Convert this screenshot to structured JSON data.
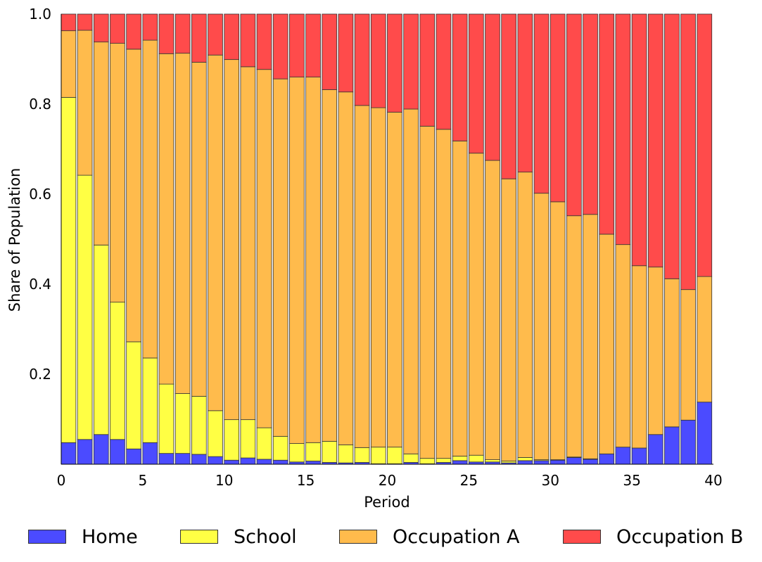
{
  "chart_data": {
    "type": "bar",
    "stacked": true,
    "xlabel": "Period",
    "ylabel": "Share of Population",
    "xlim": [
      0,
      40
    ],
    "ylim": [
      0,
      1.0
    ],
    "xticks": [
      "0",
      "5",
      "10",
      "15",
      "20",
      "25",
      "30",
      "35",
      "40"
    ],
    "yticks": [
      "0.2",
      "0.4",
      "0.6",
      "0.8",
      "1.0"
    ],
    "legend_position": "bottom",
    "x": [
      0,
      1,
      2,
      3,
      4,
      5,
      6,
      7,
      8,
      9,
      10,
      11,
      12,
      13,
      14,
      15,
      16,
      17,
      18,
      19,
      20,
      21,
      22,
      23,
      24,
      25,
      26,
      27,
      28,
      29,
      30,
      31,
      32,
      33,
      34,
      35,
      36,
      37,
      38,
      39
    ],
    "series": [
      {
        "name": "Home",
        "color": "#4b4bff",
        "values": [
          0.048,
          0.055,
          0.066,
          0.055,
          0.034,
          0.048,
          0.024,
          0.024,
          0.022,
          0.017,
          0.009,
          0.014,
          0.011,
          0.009,
          0.005,
          0.007,
          0.004,
          0.003,
          0.004,
          0.001,
          0.001,
          0.004,
          0.001,
          0.004,
          0.008,
          0.005,
          0.005,
          0.003,
          0.008,
          0.008,
          0.009,
          0.015,
          0.011,
          0.023,
          0.038,
          0.036,
          0.066,
          0.083,
          0.098,
          0.138
        ]
      },
      {
        "name": "School",
        "color": "#ffff44",
        "values": [
          0.767,
          0.587,
          0.421,
          0.305,
          0.238,
          0.188,
          0.154,
          0.133,
          0.129,
          0.102,
          0.09,
          0.085,
          0.07,
          0.053,
          0.041,
          0.041,
          0.047,
          0.04,
          0.033,
          0.037,
          0.037,
          0.019,
          0.012,
          0.009,
          0.01,
          0.015,
          0.005,
          0.004,
          0.007,
          0.002,
          0.001,
          0.001,
          0.001,
          0.0,
          0.0,
          0.0,
          0.0,
          0.0,
          0.0,
          0.0
        ]
      },
      {
        "name": "Occupation A",
        "color": "#ffbb4c",
        "values": [
          0.148,
          0.322,
          0.451,
          0.575,
          0.65,
          0.706,
          0.734,
          0.756,
          0.742,
          0.79,
          0.8,
          0.784,
          0.796,
          0.794,
          0.814,
          0.812,
          0.781,
          0.784,
          0.76,
          0.754,
          0.744,
          0.766,
          0.738,
          0.731,
          0.7,
          0.671,
          0.665,
          0.627,
          0.634,
          0.592,
          0.573,
          0.536,
          0.543,
          0.488,
          0.45,
          0.405,
          0.372,
          0.329,
          0.29,
          0.279
        ]
      },
      {
        "name": "Occupation B",
        "color": "#ff4b4b",
        "values": [
          0.037,
          0.036,
          0.062,
          0.065,
          0.078,
          0.058,
          0.088,
          0.087,
          0.107,
          0.091,
          0.101,
          0.117,
          0.123,
          0.144,
          0.14,
          0.14,
          0.168,
          0.173,
          0.203,
          0.208,
          0.218,
          0.211,
          0.249,
          0.256,
          0.282,
          0.309,
          0.325,
          0.366,
          0.351,
          0.398,
          0.417,
          0.448,
          0.445,
          0.489,
          0.512,
          0.559,
          0.562,
          0.588,
          0.612,
          0.583
        ]
      }
    ]
  }
}
